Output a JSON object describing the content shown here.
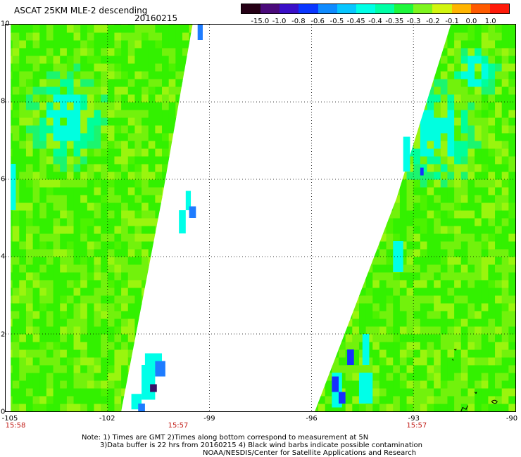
{
  "header": {
    "title": "ASCAT 25KM MLE-2 descending",
    "date": "20160215"
  },
  "colorbar": {
    "labels": [
      "-15.0",
      "-1.0",
      "-0.8",
      "-0.6",
      "-0.5",
      "-0.45",
      "-0.4",
      "-0.35",
      "-0.3",
      "-0.2",
      "-0.1",
      "0.0",
      "1.0"
    ],
    "colors": [
      "#250015",
      "#4a0a7a",
      "#3a0fc8",
      "#0a36ff",
      "#0f8bff",
      "#07c6ff",
      "#00ffe6",
      "#00ffa5",
      "#1ef73c",
      "#7ef51e",
      "#d2f50f",
      "#ffb400",
      "#ff5a00",
      "#ff1a0a"
    ]
  },
  "map": {
    "lat_labels": [
      "10",
      "8",
      "6",
      "4",
      "2",
      "0"
    ],
    "lon_labels": [
      "-105",
      "-102",
      "-99",
      "-96",
      "-93",
      "-90"
    ],
    "time_labels": [
      {
        "lon": "-105",
        "text": "15:58"
      },
      {
        "lon": "-100",
        "text": "15:57"
      },
      {
        "lon": "-93",
        "text": "15:57"
      }
    ],
    "lat_range": [
      0,
      10
    ],
    "lon_range": [
      -105,
      -90
    ],
    "grid": true,
    "swaths": [
      {
        "name": "west swath",
        "colors_dominant": [
          "#33f100",
          "#99f50a",
          "#00ffdd"
        ]
      },
      {
        "name": "east swath",
        "colors_dominant": [
          "#33f100",
          "#99f50a",
          "#00ffdd"
        ]
      }
    ]
  },
  "notes": {
    "line1": "Note: 1) Times are GMT 2)Times along bottom correspond to measurement at 5N",
    "line2": "3)Data buffer is 22 hrs from 20160215 4) Black wind barbs indicate possible contamination",
    "line3": "NOAA/NESDIS/Center for Satellite Applications and Research"
  }
}
